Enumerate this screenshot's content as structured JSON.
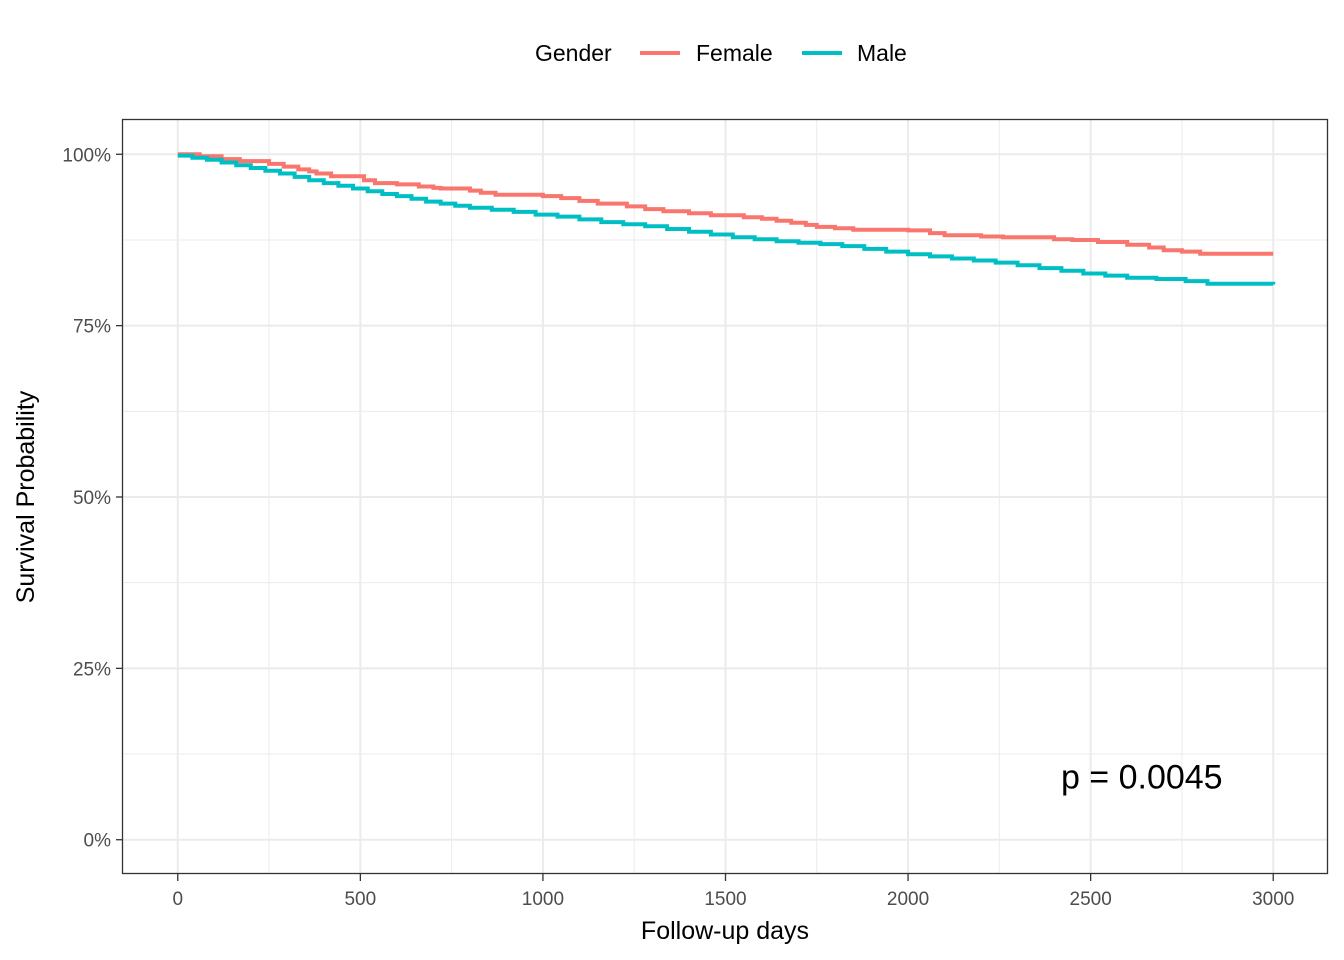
{
  "chart_data": {
    "type": "line",
    "step": true,
    "xlabel": "Follow-up days",
    "ylabel": "Survival Probability",
    "xlim": [
      -150,
      3150
    ],
    "ylim": [
      -0.05,
      1.05
    ],
    "x_ticks": [
      0,
      500,
      1000,
      1500,
      2000,
      2500,
      3000
    ],
    "x_tick_labels": [
      "0",
      "500",
      "1000",
      "1500",
      "2000",
      "2500",
      "3000"
    ],
    "y_ticks": [
      0,
      0.25,
      0.5,
      0.75,
      1.0
    ],
    "y_tick_labels": [
      "0%",
      "25%",
      "50%",
      "75%",
      "100%"
    ],
    "grid": true,
    "legend": {
      "title": "Gender",
      "position": "top",
      "entries": [
        "Female",
        "Male"
      ]
    },
    "annotation": {
      "text": "p = 0.0045",
      "x": 2640,
      "y": 0.075
    },
    "series": [
      {
        "name": "Female",
        "color": "#F8766D",
        "x": [
          0,
          60,
          120,
          170,
          250,
          290,
          330,
          360,
          380,
          420,
          510,
          540,
          600,
          660,
          700,
          720,
          800,
          830,
          870,
          1000,
          1050,
          1100,
          1150,
          1230,
          1280,
          1330,
          1400,
          1460,
          1550,
          1600,
          1640,
          1680,
          1720,
          1750,
          1800,
          1850,
          2000,
          2060,
          2100,
          2200,
          2260,
          2300,
          2400,
          2450,
          2520,
          2600,
          2660,
          2700,
          2750,
          2800,
          3000
        ],
        "y": [
          1.0,
          0.997,
          0.993,
          0.99,
          0.986,
          0.982,
          0.978,
          0.975,
          0.972,
          0.968,
          0.962,
          0.958,
          0.956,
          0.953,
          0.951,
          0.95,
          0.947,
          0.944,
          0.941,
          0.939,
          0.936,
          0.932,
          0.928,
          0.924,
          0.92,
          0.917,
          0.914,
          0.911,
          0.908,
          0.906,
          0.903,
          0.9,
          0.897,
          0.894,
          0.892,
          0.89,
          0.889,
          0.885,
          0.882,
          0.88,
          0.879,
          0.879,
          0.876,
          0.875,
          0.872,
          0.868,
          0.864,
          0.86,
          0.858,
          0.855,
          0.855
        ]
      },
      {
        "name": "Male",
        "color": "#00BFC4",
        "x": [
          0,
          40,
          80,
          120,
          160,
          200,
          240,
          280,
          320,
          360,
          400,
          440,
          480,
          520,
          560,
          600,
          640,
          680,
          720,
          760,
          800,
          860,
          920,
          980,
          1040,
          1100,
          1160,
          1220,
          1280,
          1340,
          1400,
          1460,
          1520,
          1580,
          1640,
          1700,
          1760,
          1820,
          1880,
          1940,
          2000,
          2060,
          2120,
          2180,
          2240,
          2300,
          2360,
          2420,
          2480,
          2540,
          2600,
          2680,
          2760,
          2820,
          3000
        ],
        "y": [
          0.998,
          0.995,
          0.992,
          0.988,
          0.984,
          0.98,
          0.976,
          0.972,
          0.967,
          0.962,
          0.958,
          0.954,
          0.95,
          0.946,
          0.942,
          0.939,
          0.935,
          0.931,
          0.928,
          0.925,
          0.922,
          0.919,
          0.916,
          0.912,
          0.909,
          0.905,
          0.901,
          0.898,
          0.895,
          0.891,
          0.887,
          0.883,
          0.879,
          0.876,
          0.873,
          0.871,
          0.869,
          0.866,
          0.862,
          0.858,
          0.854,
          0.851,
          0.848,
          0.845,
          0.842,
          0.838,
          0.834,
          0.83,
          0.826,
          0.823,
          0.82,
          0.818,
          0.815,
          0.811,
          0.81
        ]
      }
    ]
  }
}
